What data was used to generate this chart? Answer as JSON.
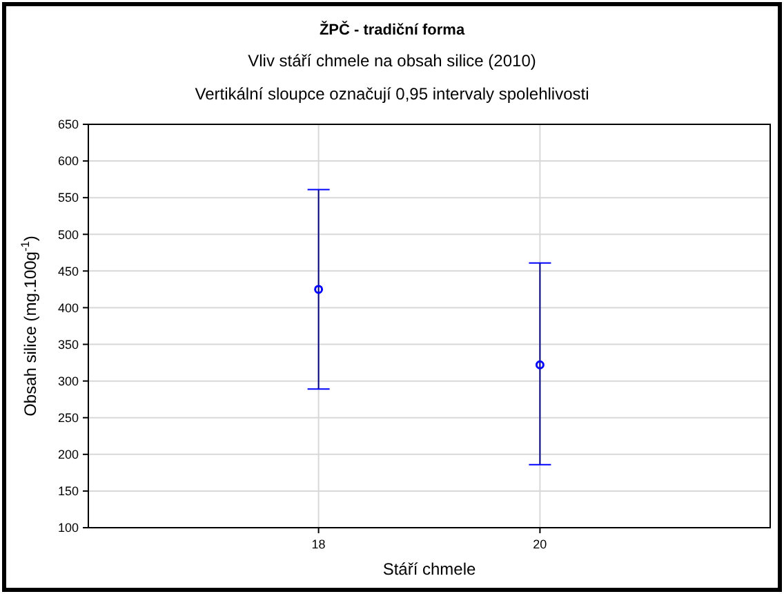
{
  "chart_data": {
    "type": "scatter",
    "title": "ŽPČ - tradiční forma",
    "subtitle": "Vliv stáří chmele na obsah silice (2010)",
    "annotations": [
      "Vertikální sloupce označují 0,95 intervaly spolehlivosti"
    ],
    "xlabel": "Stáří chmele",
    "ylabel": "Obsah silice (mg.100g$^{-1}$)",
    "categories": [
      "18",
      "20"
    ],
    "values": [
      425,
      322
    ],
    "errors": [
      [
        289,
        561
      ],
      [
        186,
        461
      ]
    ],
    "color": "#0000ff",
    "marker": "circle",
    "ylim": [
      100,
      650
    ],
    "yticks": [
      100,
      150,
      200,
      250,
      300,
      350,
      400,
      450,
      500,
      550,
      600,
      650
    ],
    "grid": true
  }
}
